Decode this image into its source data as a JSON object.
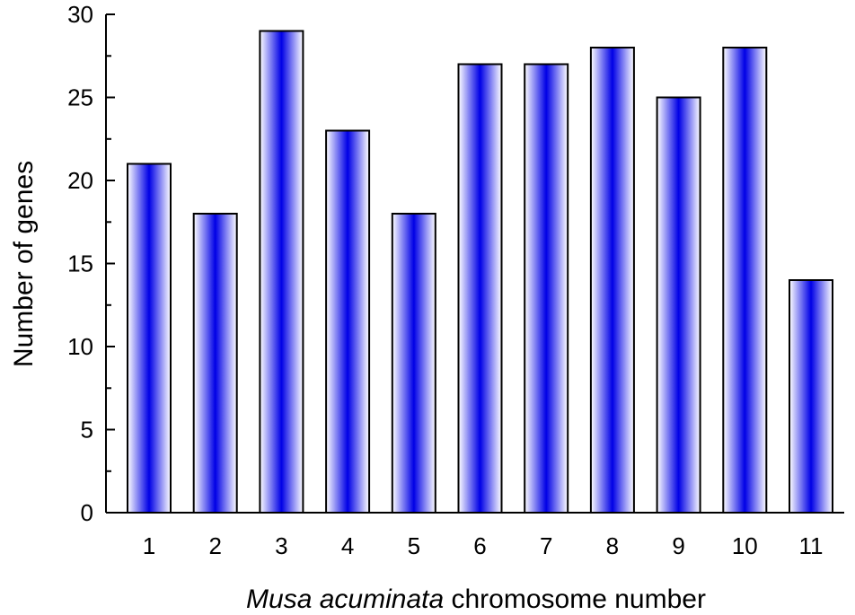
{
  "chart_data": {
    "type": "bar",
    "title": "",
    "xlabel_italic": "Musa acuminata",
    "xlabel_rest": " chromosome number",
    "ylabel": "Number of genes",
    "categories": [
      "1",
      "2",
      "3",
      "4",
      "5",
      "6",
      "7",
      "8",
      "9",
      "10",
      "11"
    ],
    "values": [
      21,
      18,
      29,
      23,
      18,
      27,
      27,
      28,
      25,
      28,
      14
    ],
    "ylim": [
      0,
      30
    ],
    "yticks": [
      "0",
      "5",
      "10",
      "15",
      "20",
      "25",
      "30"
    ],
    "grid": false,
    "legend": "none",
    "bar_colors": {
      "center": "#0000e6",
      "edge": "#ffffff",
      "outline": "#000000"
    }
  }
}
